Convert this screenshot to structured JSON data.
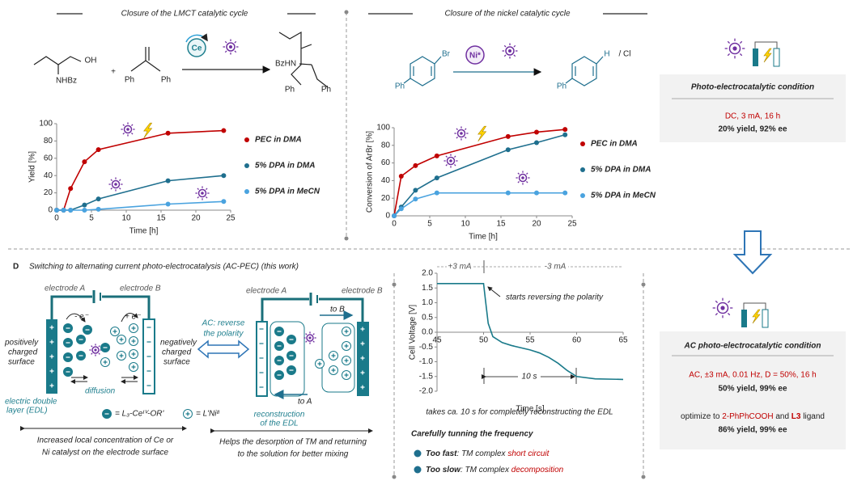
{
  "section_titles": [
    "Closure of the LMCT catalytic cycle",
    "Closure of the nickel catalytic cycle"
  ],
  "scheme_left": {
    "reactant1": [
      "OH",
      "NHBz"
    ],
    "plus": "+",
    "reactant2": [
      "Ph",
      "Ph"
    ],
    "catalyst": "Ce",
    "product": [
      "BzHN",
      "Ph",
      "Ph"
    ]
  },
  "scheme_middle": {
    "reactant": [
      "Br",
      "Ph"
    ],
    "catalyst": "Ni*",
    "product": [
      "H",
      "/ Cl",
      "Ph"
    ]
  },
  "dc_condition": {
    "title": "Photo-electrocatalytic condition",
    "line1": "DC, 3 mA, 16 h",
    "line2": "20% yield, 92% ee"
  },
  "ac_condition": {
    "title": "AC photo-electrocatalytic condition",
    "line1": "AC, ±3 mA, 0.01 Hz, D = 50%, 16 h",
    "line2": "50% yield, 99% ee",
    "line3": [
      "optimize to ",
      "2-PhPhCOOH",
      " and ",
      "L3",
      " ligand"
    ],
    "line4": "86% yield, 99% ee"
  },
  "panel_d": {
    "label": "D",
    "title": "Switching to alternating current photo-electrocatalysis (AC-PEC) (this work)",
    "left": {
      "electrode_a": "electrode A",
      "electrode_b": "electrode B",
      "minus_e": "- e⁻",
      "plus_e": "+ e⁻",
      "positive": [
        "positively",
        "charged",
        "surface"
      ],
      "negative": [
        "negatively",
        "charged",
        "surface"
      ],
      "diffusion": "diffusion",
      "edl": [
        "electric double",
        "layer (EDL)"
      ],
      "legend": [
        "= L₃-Ceᴵⱽ-OR'",
        "= L'Niᴵᴵ"
      ],
      "caption": [
        "Increased local concentration of Ce or",
        "Ni catalyst on the electrode surface"
      ]
    },
    "middle": {
      "ac": [
        "AC: reverse",
        "the polarity"
      ]
    },
    "right": {
      "electrode_a": "electrode A",
      "electrode_b": "electrode B",
      "to_b": "to B",
      "to_a": "to A",
      "reconstruction": [
        "reconstruction",
        "of the EDL"
      ],
      "caption": [
        "Helps the desorption of TM and returning",
        "to the solution for better mixing"
      ]
    },
    "voltage_caption": "takes ca. 10 s for completely reconstructing the EDL",
    "frequency": {
      "title": "Carefully tunning the frequency",
      "fast": [
        "Too fast",
        ": TM complex ",
        "short circuit"
      ],
      "slow": [
        "Too slow",
        ": TM complex ",
        "decomposition"
      ]
    }
  },
  "chart_data": [
    {
      "type": "line",
      "x_label": "Time [h]",
      "y_label": "Yield [%]",
      "x": [
        0,
        1,
        2,
        4,
        6,
        16,
        24
      ],
      "series": [
        {
          "name": "PEC in DMA",
          "color": "#c00000",
          "values": [
            0,
            0,
            25,
            56,
            70,
            89,
            92
          ]
        },
        {
          "name": "5% DPA in DMA",
          "color": "#1f6f8e",
          "values": [
            0,
            0,
            0,
            6,
            13,
            34,
            40
          ]
        },
        {
          "name": "5% DPA in MeCN",
          "color": "#4aa3df",
          "values": [
            0,
            0,
            0,
            0,
            1,
            7,
            10
          ]
        }
      ],
      "xlim": [
        0,
        25
      ],
      "xticks": [
        0,
        5,
        10,
        15,
        20,
        25
      ],
      "ylim": [
        0,
        100
      ],
      "yticks": [
        0,
        20,
        40,
        60,
        80,
        100
      ]
    },
    {
      "type": "line",
      "x_label": "Time [h]",
      "y_label": "Conversion of ArBr [%]",
      "x": [
        0,
        1,
        3,
        6,
        16,
        20,
        24
      ],
      "series": [
        {
          "name": "PEC in DMA",
          "color": "#c00000",
          "values": [
            0,
            45,
            57,
            68,
            90,
            95,
            98
          ]
        },
        {
          "name": "5% DPA in DMA",
          "color": "#1f6f8e",
          "values": [
            0,
            10,
            29,
            43,
            75,
            83,
            92
          ]
        },
        {
          "name": "5% DPA in MeCN",
          "color": "#4aa3df",
          "values": [
            0,
            8,
            19,
            26,
            26,
            26,
            26
          ]
        }
      ],
      "xlim": [
        0,
        25
      ],
      "xticks": [
        0,
        5,
        10,
        15,
        20,
        25
      ],
      "ylim": [
        0,
        100
      ],
      "yticks": [
        0,
        20,
        40,
        60,
        80,
        100
      ]
    },
    {
      "type": "line",
      "x_label": "Time [s]",
      "y_label": "Cell Voltage [V]",
      "color": "#1a7a8a",
      "x": [
        45,
        50,
        50.2,
        50.5,
        51,
        52,
        53,
        55,
        56,
        57,
        58,
        59,
        60,
        62,
        65
      ],
      "values": [
        1.65,
        1.65,
        1.1,
        0.3,
        -0.15,
        -0.35,
        -0.45,
        -0.6,
        -0.7,
        -0.85,
        -1.05,
        -1.3,
        -1.5,
        -1.58,
        -1.6
      ],
      "annotations": [
        "+3 mA",
        "-3 mA",
        "starts reversing the polarity",
        "10 s"
      ],
      "xlim": [
        45,
        65
      ],
      "xticks": [
        45,
        50,
        55,
        60,
        65
      ],
      "ylim": [
        -2,
        2
      ],
      "yticks": [
        {
          "value": 2,
          "label": "2.0"
        },
        {
          "value": 1.5,
          "label": "1.5"
        },
        {
          "value": 1,
          "label": "1.0"
        },
        {
          "value": 0.5,
          "label": "0.5"
        },
        {
          "value": 0,
          "label": "0.0"
        },
        {
          "value": -0.5,
          "label": "-0.5"
        },
        {
          "value": -1,
          "label": "-1.0"
        },
        {
          "value": -1.5,
          "label": "-1.5"
        },
        {
          "value": -2,
          "label": "-2.0"
        }
      ]
    }
  ]
}
